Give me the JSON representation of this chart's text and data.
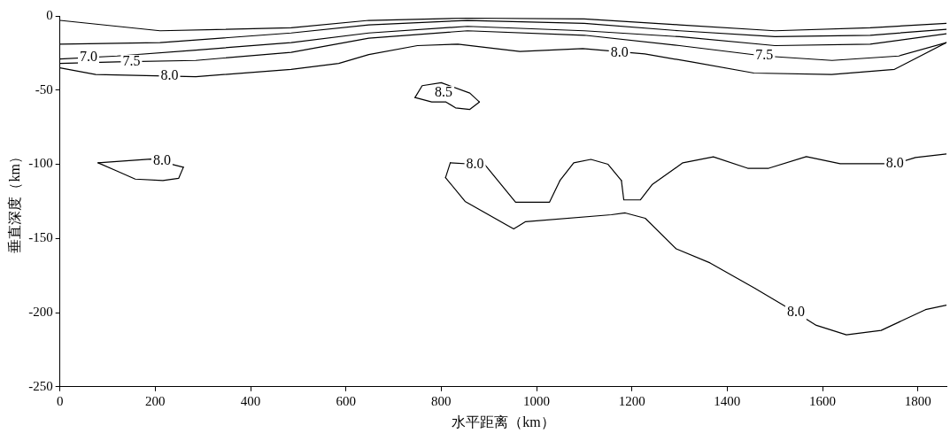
{
  "chart_data": {
    "type": "line",
    "xlabel": "水平距离（km）",
    "ylabel": "垂直深度（km）",
    "xlim": [
      0,
      1860
    ],
    "xticks": [
      0,
      200,
      400,
      600,
      800,
      1000,
      1200,
      1400,
      1600,
      1800
    ],
    "ylim": [
      -250,
      0
    ],
    "yticks": [
      0,
      -50,
      -100,
      -150,
      -200,
      -250
    ],
    "grid": false,
    "legend": false,
    "marker": "none",
    "line_style": "solid",
    "series": [
      {
        "color": "#000000",
        "x": [
          0,
          210,
          485,
          648,
          855,
          1100,
          1300,
          1500,
          1700,
          1860
        ],
        "values": [
          -3,
          -10,
          -8,
          -3,
          -1.5,
          -2,
          -6,
          -10,
          -8,
          -5
        ]
      },
      {
        "color": "#000000",
        "x": [
          0,
          210,
          485,
          648,
          855,
          1100,
          1300,
          1500,
          1700,
          1860
        ],
        "values": [
          -19,
          -18,
          -11.5,
          -6,
          -3,
          -5,
          -10,
          -14,
          -13,
          -9
        ]
      },
      {
        "color": "#000000",
        "x": [
          0,
          120,
          285,
          485,
          648,
          855,
          1100,
          1300,
          1500,
          1700,
          1860
        ],
        "values": [
          -29,
          -27,
          -23,
          -18,
          -11.5,
          -7,
          -10,
          -14,
          -20,
          -19,
          -12
        ]
      },
      {
        "color": "#000000",
        "x": [
          0,
          120,
          285,
          485,
          648,
          855,
          1100,
          1300,
          1478,
          1620,
          1760,
          1860
        ],
        "values": [
          -32,
          -31,
          -30,
          -24.5,
          -15,
          -10,
          -13,
          -20,
          -27,
          -30,
          -27,
          -18
        ]
      },
      {
        "color": "#000000",
        "x": [
          0,
          75,
          285,
          485,
          585,
          648,
          750,
          835,
          965,
          1097,
          1227,
          1325,
          1456,
          1619,
          1751,
          1860
        ],
        "values": [
          -35,
          -39.5,
          -41,
          -36,
          -32,
          -26,
          -20,
          -19,
          -24,
          -22,
          -25.6,
          -31,
          -38.5,
          -39.5,
          -36,
          -18
        ]
      },
      {
        "color": "#000000",
        "x": [
          745,
          760,
          800,
          860,
          880
        ],
        "values": [
          -55,
          -47,
          -45,
          -52,
          -58
        ]
      },
      {
        "color": "#000000",
        "x": [
          745,
          780,
          810,
          830,
          860,
          880
        ],
        "values": [
          -55,
          -58,
          -58,
          -62,
          -63,
          -58
        ]
      },
      {
        "color": "#000000",
        "x": [
          80,
          191,
          259
        ],
        "values": [
          -99,
          -96.5,
          -102
        ]
      },
      {
        "color": "#000000",
        "x": [
          80,
          119,
          158,
          216,
          249,
          259
        ],
        "values": [
          -99,
          -104.5,
          -110,
          -111,
          -109.5,
          -102
        ]
      },
      {
        "color": "#000000",
        "x": [
          1178,
          1183,
          1218,
          1243,
          1307,
          1371,
          1443,
          1487,
          1566,
          1637,
          1752,
          1795,
          1860
        ],
        "values": [
          -111,
          -124,
          -124,
          -113.5,
          -99,
          -95,
          -102.7,
          -102.7,
          -94.8,
          -99.6,
          -99.6,
          -95.4,
          -93
        ]
      },
      {
        "color": "#000000",
        "x": [
          1049,
          1078,
          1114,
          1150,
          1178
        ],
        "values": [
          -111,
          -99,
          -96.7,
          -100,
          -111
        ]
      },
      {
        "color": "#000000",
        "x": [
          819,
          871,
          891,
          956,
          1027,
          1049
        ],
        "values": [
          -99,
          -100,
          -100,
          -125.6,
          -125.6,
          -111
        ]
      },
      {
        "color": "#000000",
        "x": [
          809,
          819
        ],
        "values": [
          -109,
          -99
        ]
      },
      {
        "color": "#000000",
        "x": [
          809,
          850,
          952,
          977,
          1157,
          1186,
          1228,
          1293,
          1364,
          1457,
          1544,
          1587,
          1650,
          1723,
          1816,
          1860
        ],
        "values": [
          -109,
          -125,
          -143.6,
          -138.7,
          -134,
          -132.8,
          -136.4,
          -157,
          -166.5,
          -183.4,
          -200,
          -208.6,
          -215,
          -212,
          -198,
          -195
        ]
      }
    ],
    "annotations": [
      {
        "text": "7.0",
        "x": 60,
        "y": -28
      },
      {
        "text": "7.5",
        "x": 150,
        "y": -31
      },
      {
        "text": "8.0",
        "x": 230,
        "y": -40.5
      },
      {
        "text": "8.0",
        "x": 1174,
        "y": -25
      },
      {
        "text": "7.5",
        "x": 1478,
        "y": -27
      },
      {
        "text": "8.5",
        "x": 805,
        "y": -52
      },
      {
        "text": "8.0",
        "x": 214,
        "y": -98
      },
      {
        "text": "8.0",
        "x": 871,
        "y": -100
      },
      {
        "text": "8.0",
        "x": 1752,
        "y": -99.6
      },
      {
        "text": "8.0",
        "x": 1544,
        "y": -200
      }
    ]
  }
}
